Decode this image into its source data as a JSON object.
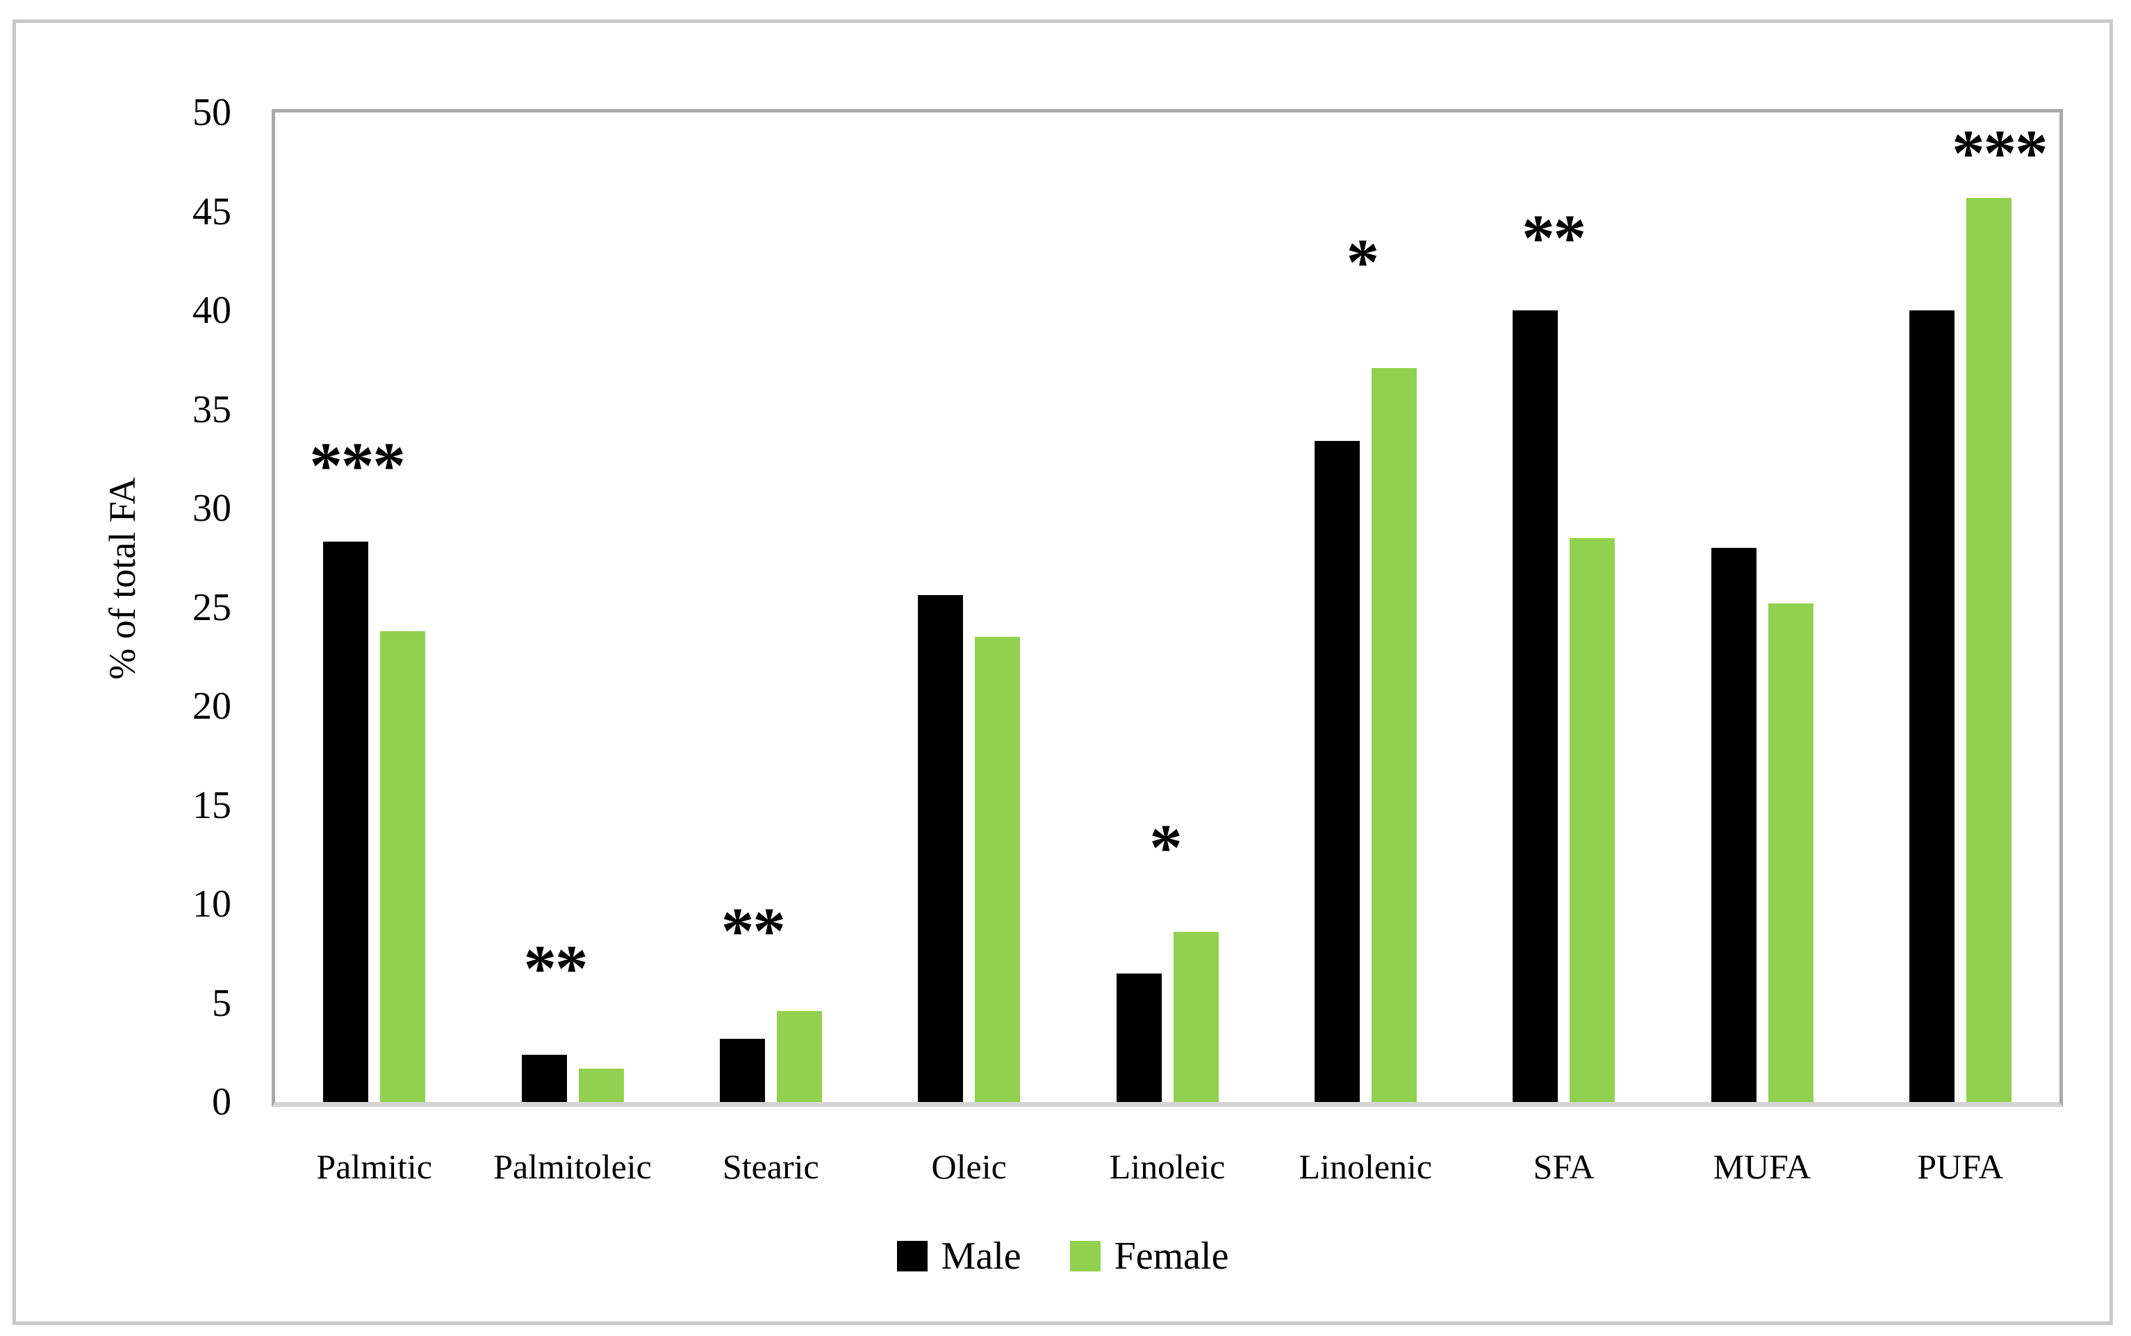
{
  "figure": {
    "y_axis_title": "% of total FA"
  },
  "chart_data": {
    "type": "bar",
    "title": "",
    "xlabel": "",
    "ylabel": "% of total FA",
    "ylim": [
      0,
      50
    ],
    "ytick_step": 5,
    "yticks": [
      0,
      5,
      10,
      15,
      20,
      25,
      30,
      35,
      40,
      45,
      50
    ],
    "grid": false,
    "legend_position": "bottom",
    "categories": [
      "Palmitic",
      "Palmitoleic",
      "Stearic",
      "Oleic",
      "Linoleic",
      "Linolenic",
      "SFA",
      "MUFA",
      "PUFA"
    ],
    "series": [
      {
        "name": "Male",
        "color": "#000000",
        "values": [
          28.3,
          2.4,
          3.2,
          25.6,
          6.5,
          33.4,
          40.0,
          28.0,
          40.0
        ]
      },
      {
        "name": "Female",
        "color": "#92d050",
        "values": [
          23.8,
          1.7,
          4.6,
          23.5,
          8.6,
          37.1,
          28.5,
          25.2,
          45.7
        ]
      }
    ],
    "annotations": [
      {
        "category_index": 0,
        "text": "***",
        "y": 32.8,
        "dx": -25
      },
      {
        "category_index": 1,
        "text": "**",
        "y": 7.4,
        "dx": -25
      },
      {
        "category_index": 2,
        "text": "**",
        "y": 9.3,
        "dx": -26
      },
      {
        "category_index": 4,
        "text": "*",
        "y": 13.5,
        "dx": -3
      },
      {
        "category_index": 5,
        "text": "*",
        "y": 43.1,
        "dx": -5
      },
      {
        "category_index": 6,
        "text": "**",
        "y": 44.3,
        "dx": -15
      },
      {
        "category_index": 8,
        "text": "***",
        "y": 48.6,
        "dx": 56
      }
    ],
    "colors": {
      "male_bar": "#000000",
      "female_bar": "#92d050",
      "plot_border": "#aba9a7",
      "baseline": "#d6d4d2",
      "outer_frame": "#c9c9c9",
      "background": "#ffffff"
    }
  }
}
